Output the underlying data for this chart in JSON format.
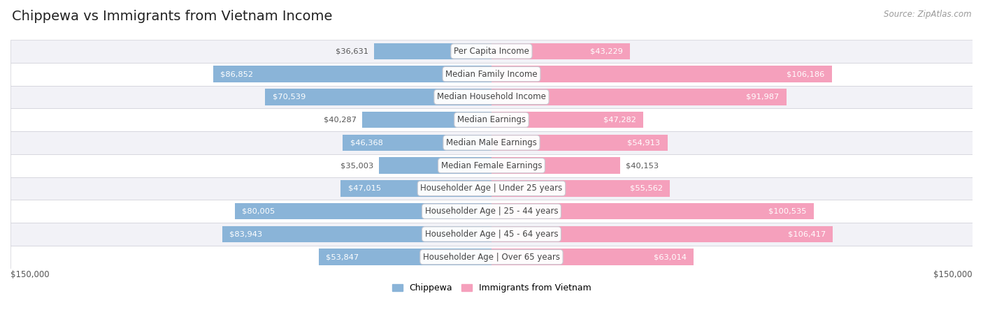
{
  "title": "Chippewa vs Immigrants from Vietnam Income",
  "source": "Source: ZipAtlas.com",
  "categories": [
    "Per Capita Income",
    "Median Family Income",
    "Median Household Income",
    "Median Earnings",
    "Median Male Earnings",
    "Median Female Earnings",
    "Householder Age | Under 25 years",
    "Householder Age | 25 - 44 years",
    "Householder Age | 45 - 64 years",
    "Householder Age | Over 65 years"
  ],
  "chippewa_values": [
    36631,
    86852,
    70539,
    40287,
    46368,
    35003,
    47015,
    80005,
    83943,
    53847
  ],
  "vietnam_values": [
    43229,
    106186,
    91987,
    47282,
    54913,
    40153,
    55562,
    100535,
    106417,
    63014
  ],
  "chippewa_color": "#8ab4d8",
  "vietnam_color": "#f5a0bc",
  "chippewa_dark_color": "#5b8db8",
  "vietnam_dark_color": "#e06090",
  "row_bg_even": "#f2f2f7",
  "row_bg_odd": "#ffffff",
  "row_border": "#d0d0d8",
  "max_value": 150000,
  "xlabel_left": "$150,000",
  "xlabel_right": "$150,000",
  "legend_chippewa": "Chippewa",
  "legend_vietnam": "Immigrants from Vietnam",
  "background_color": "#ffffff",
  "title_color": "#222222",
  "source_color": "#999999",
  "label_color": "#444444",
  "value_dark_color": "#555555",
  "value_white_threshold": 0.28
}
